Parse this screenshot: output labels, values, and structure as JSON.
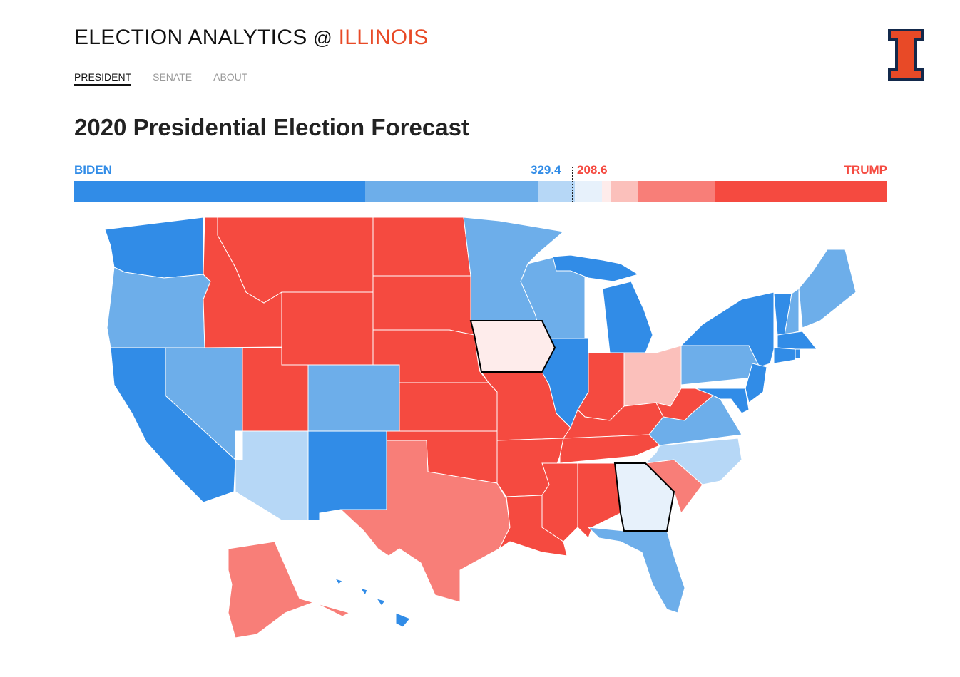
{
  "header": {
    "brand": "ELECTION ANALYTICS",
    "at": "@",
    "brand_accent": "ILLINOIS",
    "logo": "illinois-block-i-logo"
  },
  "nav": [
    {
      "label": "PRESIDENT",
      "active": true
    },
    {
      "label": "SENATE",
      "active": false
    },
    {
      "label": "ABOUT",
      "active": false
    }
  ],
  "title": "2020 Presidential Election Forecast",
  "summary": {
    "biden_label": "BIDEN",
    "trump_label": "TRUMP",
    "biden_ev": "329.4",
    "trump_ev": "208.6"
  },
  "colors": {
    "safe_d": "#318ce7",
    "likely_d": "#6daeea",
    "lean_d": "#b6d7f6",
    "tilt_d": "#e7f1fb",
    "tilt_r": "#feeceb",
    "lean_r": "#fbc0bb",
    "likely_r": "#f87e78",
    "safe_r": "#f54a40",
    "biden": "#318ce7",
    "trump": "#f54a40"
  },
  "bar_segments": [
    {
      "rating": "safe_d"
    },
    {
      "rating": "likely_d"
    },
    {
      "rating": "lean_d"
    },
    {
      "rating": "tilt_d"
    },
    {
      "rating": "tilt_r"
    },
    {
      "rating": "lean_r"
    },
    {
      "rating": "likely_r"
    },
    {
      "rating": "safe_r"
    }
  ],
  "states": {
    "WA": "safe_d",
    "OR": "likely_d",
    "CA": "safe_d",
    "NV": "likely_d",
    "ID": "safe_r",
    "MT": "safe_r",
    "WY": "safe_r",
    "UT": "safe_r",
    "AZ": "lean_d",
    "CO": "likely_d",
    "NM": "safe_d",
    "ND": "safe_r",
    "SD": "safe_r",
    "NE": "safe_r",
    "KS": "safe_r",
    "OK": "safe_r",
    "TX": "likely_r",
    "MN": "likely_d",
    "IA": "tilt_r",
    "MO": "safe_r",
    "AR": "safe_r",
    "LA": "safe_r",
    "WI": "likely_d",
    "IL": "safe_d",
    "MI": "safe_d",
    "IN": "safe_r",
    "OH": "lean_r",
    "KY": "safe_r",
    "TN": "safe_r",
    "MS": "safe_r",
    "AL": "safe_r",
    "GA": "tilt_d",
    "FL": "likely_d",
    "SC": "likely_r",
    "NC": "lean_d",
    "VA": "likely_d",
    "WV": "safe_r",
    "PA": "likely_d",
    "NY": "safe_d",
    "NJ": "safe_d",
    "MD": "safe_d",
    "VT": "safe_d",
    "NH": "likely_d",
    "ME": "likely_d",
    "MA": "safe_d",
    "CT": "safe_d",
    "RI": "safe_d",
    "AK": "likely_r",
    "HI": "safe_d"
  }
}
